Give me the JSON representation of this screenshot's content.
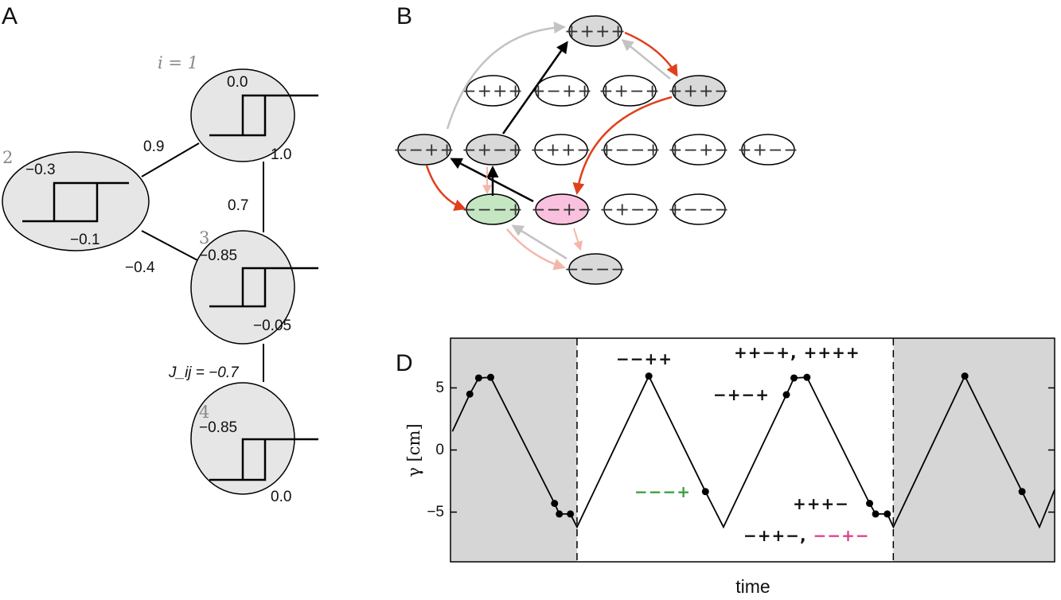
{
  "panel_a": {
    "label": "A",
    "nodes": [
      {
        "index": "i = 1",
        "upper": "0.0",
        "lower": "1.0"
      },
      {
        "index": "2",
        "upper": "−0.3",
        "lower": "−0.1"
      },
      {
        "index": "3",
        "upper": "−0.85",
        "lower": "−0.05"
      },
      {
        "index": "4",
        "upper": "−0.85",
        "lower": "0.0"
      }
    ],
    "couplings": {
      "j12": "0.9",
      "j13": "0.7",
      "j23": "−0.4",
      "j34": "J_ij = −0.7"
    },
    "node_fill": "#e6e6e6"
  },
  "panel_b": {
    "label": "B",
    "states": {
      "pppp": "++++",
      "mppp": "−+++",
      "pmpp": "+−++",
      "ppmp": "++−+",
      "pppm": "+++−",
      "mmpp": "−−++",
      "mpmp": "−+−+",
      "mppm": "−++−",
      "pmmp": "+−−+",
      "pmpm": "+−+−",
      "ppmm": "++−−",
      "mmmp": "−−−+",
      "mmpm": "−−+−",
      "mpmm": "−+−−",
      "pmmm": "+−−−",
      "mmmm": "−−−−"
    },
    "colors": {
      "visited": "#d9d9d9",
      "green": "#c5e6c3",
      "pink": "#f9c1dd",
      "red_arrow": "#e0401c",
      "light_arrow": "#f3b6ab",
      "grey_arrow": "#c3c3c3",
      "black_arrow": "#000000"
    }
  },
  "panel_d": {
    "label": "D",
    "chart_data": {
      "type": "line",
      "xlabel": "time",
      "ylabel": "γ [cm]",
      "ylim": [
        -9,
        9
      ],
      "xlim": [
        -0.4,
        1.51
      ],
      "yticks": [
        5,
        0,
        -5
      ],
      "ytick_labels": [
        "5",
        "0",
        "−5"
      ],
      "grid": false,
      "shaded_regions": [
        [
          -0.4,
          0
        ],
        [
          1,
          1.51
        ]
      ],
      "dashed_verticals": [
        0,
        1
      ],
      "series": [
        {
          "x": [
            -0.394,
            -0.339,
            -0.311,
            -0.273,
            -0.071,
            -0.056,
            -0.021,
            0,
            0.227,
            0.406,
            0.463,
            0.662,
            0.686,
            0.727,
            0.925,
            0.944,
            0.981,
            1,
            1.226,
            1.407,
            1.462,
            1.51
          ],
          "y": [
            1.5,
            4.5,
            5.8,
            5.85,
            -4.3,
            -5.15,
            -5.15,
            -6.2,
            5.95,
            -3.35,
            -6.2,
            4.45,
            5.8,
            5.85,
            -4.3,
            -5.15,
            -5.15,
            -6.2,
            5.95,
            -3.35,
            -6.2,
            -3.2
          ],
          "markers": [
            false,
            true,
            true,
            true,
            true,
            true,
            true,
            false,
            true,
            true,
            false,
            true,
            true,
            true,
            true,
            true,
            true,
            false,
            true,
            true,
            false,
            false
          ]
        }
      ],
      "annotations": [
        {
          "text": "−−++",
          "color": "#111111"
        },
        {
          "text": "++−+, ++++",
          "color": "#111111"
        },
        {
          "text": "−+−+",
          "color": "#111111"
        },
        {
          "text": "−−−+",
          "color": "#3aa040"
        },
        {
          "text": "+++−",
          "color": "#111111"
        },
        {
          "text": "−++−, ",
          "color": "#111111"
        },
        {
          "text": "−−+−",
          "color": "#e0408a"
        }
      ]
    }
  }
}
